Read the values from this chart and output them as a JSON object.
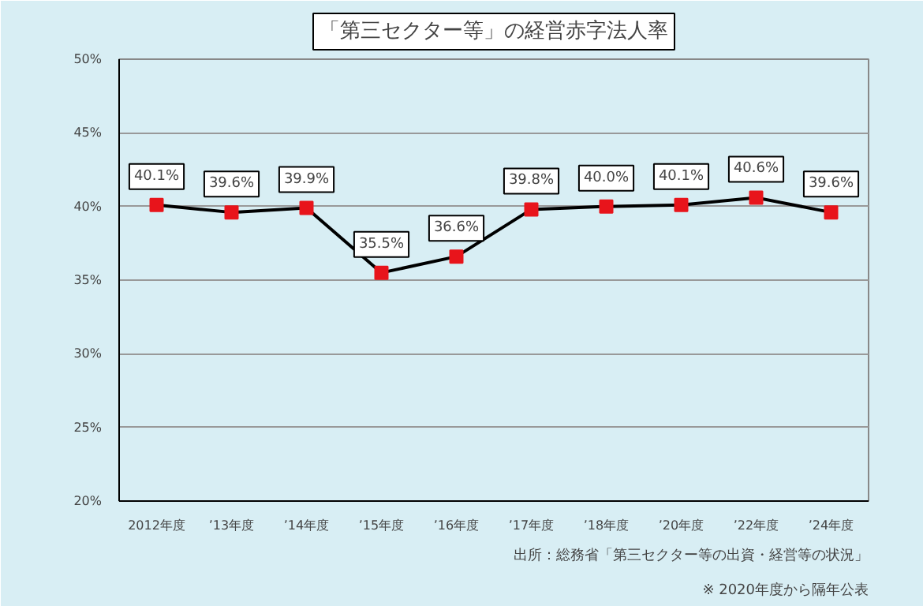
{
  "chart_data": {
    "type": "line",
    "title": "「第三セクター等」の経営赤字法人率",
    "categories": [
      "2012年度",
      "’13年度",
      "’14年度",
      "’15年度",
      "’16年度",
      "’17年度",
      "’18年度",
      "’20年度",
      "’22年度",
      "’24年度"
    ],
    "series": [
      {
        "color": "#e8141b",
        "values": [
          40.1,
          39.6,
          39.9,
          35.5,
          36.6,
          39.8,
          40.0,
          40.1,
          40.6,
          39.6
        ],
        "value_labels": [
          "40.1%",
          "39.6%",
          "39.9%",
          "35.5%",
          "36.6%",
          "39.8%",
          "40.0%",
          "40.1%",
          "40.6%",
          "39.6%"
        ]
      }
    ],
    "ylim": [
      20,
      50
    ],
    "yticks": [
      {
        "value": 20,
        "label": "20%"
      },
      {
        "value": 25,
        "label": "25%"
      },
      {
        "value": 30,
        "label": "30%"
      },
      {
        "value": 35,
        "label": "35%"
      },
      {
        "value": 40,
        "label": "40%"
      },
      {
        "value": 45,
        "label": "45%"
      },
      {
        "value": 50,
        "label": "50%"
      }
    ],
    "grid": "y",
    "marker": "square",
    "line_style": "solid",
    "annotations": [
      "出所：総務省「第三セクター等の出資・経営等の状況」",
      "※ 2020年度から隔年公表"
    ]
  }
}
